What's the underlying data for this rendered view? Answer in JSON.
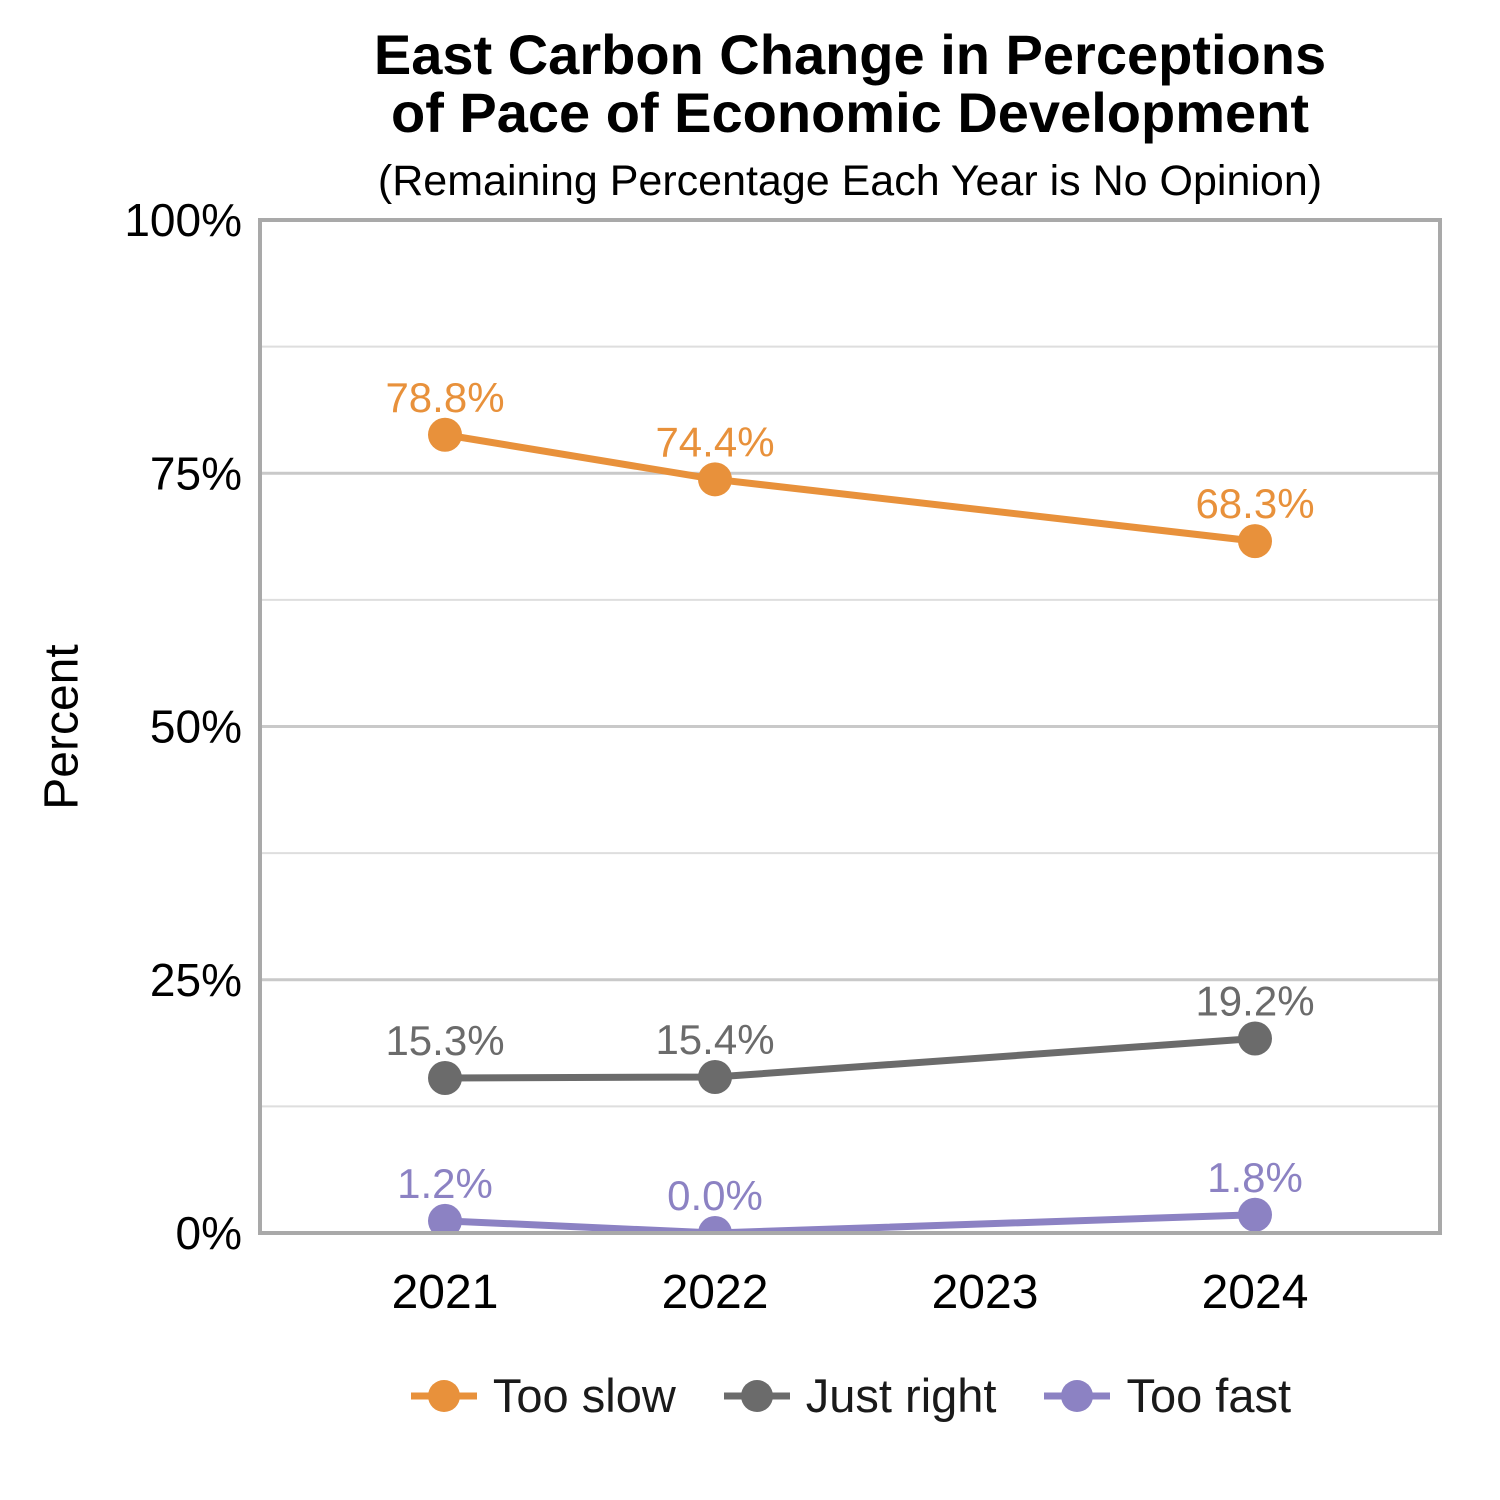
{
  "header": {
    "title_line1": "East Carbon Change in Perceptions",
    "title_line2": "of Pace of Economic Development",
    "subtitle": "(Remaining Percentage Each Year is No Opinion)"
  },
  "chart_data": {
    "type": "line",
    "title": "East Carbon Change in Perceptions of Pace of Economic Development",
    "subtitle": "(Remaining Percentage Each Year is No Opinion)",
    "xlabel": "",
    "ylabel": "Percent",
    "x_ticks": [
      "2021",
      "2022",
      "2023",
      "2024"
    ],
    "y_ticks": [
      "0%",
      "25%",
      "50%",
      "75%",
      "100%"
    ],
    "y_tick_values": [
      0,
      25,
      50,
      75,
      100
    ],
    "ylim": [
      0,
      100
    ],
    "grid": true,
    "legend_position": "bottom",
    "series": [
      {
        "name": "Too slow",
        "color": "#E8913B",
        "x": [
          2021,
          2022,
          2024
        ],
        "values": [
          78.8,
          74.4,
          68.3
        ],
        "labels": [
          "78.8%",
          "74.4%",
          "68.3%"
        ]
      },
      {
        "name": "Just right",
        "color": "#6B6B6B",
        "x": [
          2021,
          2022,
          2024
        ],
        "values": [
          15.3,
          15.4,
          19.2
        ],
        "labels": [
          "15.3%",
          "15.4%",
          "19.2%"
        ]
      },
      {
        "name": "Too fast",
        "color": "#8C82C3",
        "x": [
          2021,
          2022,
          2024
        ],
        "values": [
          1.2,
          0.0,
          1.8
        ],
        "labels": [
          "1.2%",
          "0.0%",
          "1.8%"
        ]
      }
    ],
    "colors": {
      "major_grid": "#C9C9C9",
      "minor_grid": "#DEDEDE",
      "panel_border": "#A9A9A9",
      "tick_text": "#000000"
    }
  }
}
